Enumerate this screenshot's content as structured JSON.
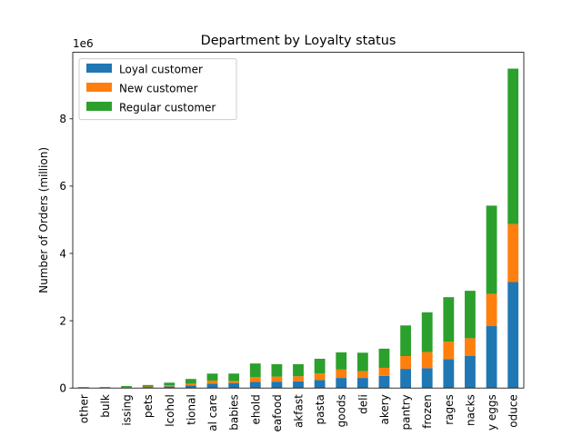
{
  "chart_data": {
    "type": "bar",
    "stacked": true,
    "title": "Department by Loyalty status",
    "ylabel": "Number of Orders (million)",
    "xlabel": "",
    "y_offset_label": "1e6",
    "ylim": [
      0,
      9975000
    ],
    "yticks": [
      0,
      2,
      4,
      6,
      8
    ],
    "grid": false,
    "legend_position": "upper-left",
    "colors": {
      "loyal": "#1f77b4",
      "new": "#ff7f0e",
      "regular": "#2ca02c"
    },
    "categories": [
      "other",
      "bulk",
      "missing",
      "pets",
      "alcohol",
      "international",
      "personal care",
      "babies",
      "household",
      "meat seafood",
      "breakfast",
      "dry goods pasta",
      "canned goods",
      "deli",
      "bakery",
      "pantry",
      "frozen",
      "beverages",
      "snacks",
      "dairy eggs",
      "produce"
    ],
    "tick_labels": [
      "other",
      "bulk",
      "issing",
      "pets",
      "lcohol",
      "tional",
      "al care",
      "babies",
      "ehold",
      "eafood",
      "akfast",
      "pasta",
      "goods",
      "deli",
      "akery",
      "pantry",
      "frozen",
      "rages",
      "nacks",
      "y eggs",
      "oduce"
    ],
    "series": [
      {
        "name": "Loyal customer",
        "key": "loyal",
        "values": [
          0.01,
          0.01,
          0.02,
          0.03,
          0.05,
          0.08,
          0.13,
          0.15,
          0.18,
          0.19,
          0.2,
          0.24,
          0.3,
          0.3,
          0.36,
          0.57,
          0.59,
          0.86,
          0.95,
          1.84,
          3.15
        ]
      },
      {
        "name": "New customer",
        "key": "new",
        "values": [
          0.005,
          0.005,
          0.01,
          0.015,
          0.03,
          0.05,
          0.09,
          0.06,
          0.15,
          0.15,
          0.15,
          0.19,
          0.25,
          0.2,
          0.24,
          0.38,
          0.48,
          0.52,
          0.53,
          0.96,
          1.72
        ]
      },
      {
        "name": "Regular customer",
        "key": "regular",
        "values": [
          0.015,
          0.015,
          0.03,
          0.045,
          0.08,
          0.14,
          0.21,
          0.22,
          0.4,
          0.37,
          0.36,
          0.44,
          0.51,
          0.55,
          0.57,
          0.91,
          1.18,
          1.32,
          1.41,
          2.62,
          4.62
        ]
      }
    ]
  }
}
